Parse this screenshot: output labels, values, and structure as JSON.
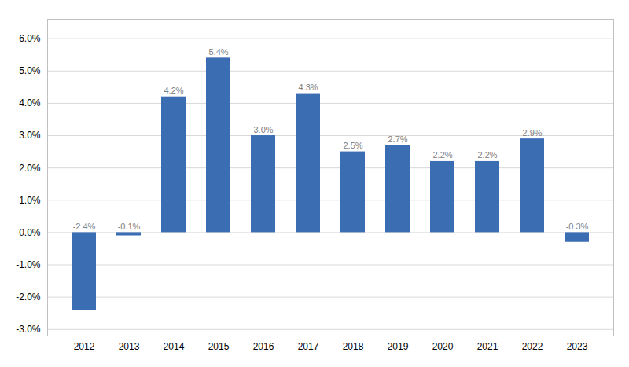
{
  "chart_data": {
    "type": "bar",
    "categories": [
      "2012",
      "2013",
      "2014",
      "2015",
      "2016",
      "2017",
      "2018",
      "2019",
      "2020",
      "2021",
      "2022",
      "2023"
    ],
    "values": [
      -2.4,
      -0.1,
      4.2,
      5.4,
      3.0,
      4.3,
      2.5,
      2.7,
      2.2,
      2.2,
      2.9,
      -0.3
    ],
    "value_labels": [
      "-2.4%",
      "-0.1%",
      "4.2%",
      "5.4%",
      "3.0%",
      "4.3%",
      "2.5%",
      "2.7%",
      "2.2%",
      "2.2%",
      "2.9%",
      "-0.3%"
    ],
    "data_labels": true,
    "color": "#3B6DB3",
    "ylim": [
      -3.2,
      6.6
    ],
    "yticks": [
      {
        "value": -3.0,
        "label": "-3.0%"
      },
      {
        "value": -2.0,
        "label": "-2.0%"
      },
      {
        "value": -1.0,
        "label": "-1.0%"
      },
      {
        "value": 0.0,
        "label": "0.0%"
      },
      {
        "value": 1.0,
        "label": "1.0%"
      },
      {
        "value": 2.0,
        "label": "2.0%"
      },
      {
        "value": 3.0,
        "label": "3.0%"
      },
      {
        "value": 4.0,
        "label": "4.0%"
      },
      {
        "value": 5.0,
        "label": "5.0%"
      },
      {
        "value": 6.0,
        "label": "6.0%"
      }
    ],
    "grid": true
  }
}
